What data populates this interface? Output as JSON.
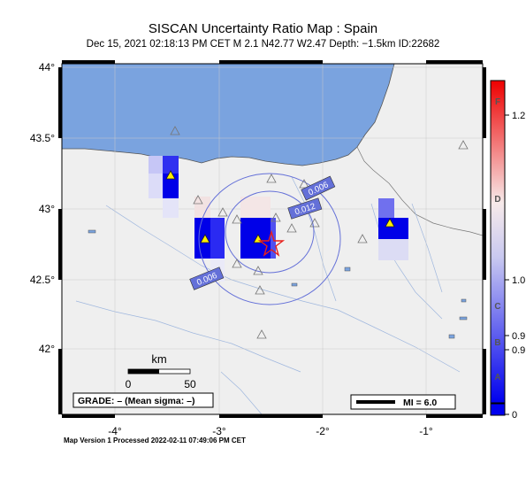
{
  "header": {
    "title": "SISCAN Uncertainty Ratio Map : Spain",
    "subtitle": "Dec 15, 2021 02:18:13 PM CET   M 2.1   N42.77 W2.47   Depth: −1.5km   ID:22682"
  },
  "map": {
    "lon_ticks": [
      "-4°",
      "-3°",
      "-2°",
      "-1°"
    ],
    "lat_ticks": [
      "44°",
      "43.5°",
      "43°",
      "42.5°",
      "42°"
    ],
    "contour_labels": [
      "0.006",
      "0.012",
      "0.006"
    ],
    "scale_title": "km",
    "scale_ticks": [
      "0",
      "50"
    ],
    "grade_text": "GRADE: – (Mean sigma: –)",
    "mi_text": "MI = 6.0",
    "epicenter": {
      "lat": 42.77,
      "lon": -2.47
    }
  },
  "colorbar": {
    "letters": [
      "F",
      "D",
      "C",
      "B",
      "A"
    ],
    "values": [
      "1.2",
      "1.0",
      "0.9",
      "0.9",
      "0"
    ]
  },
  "footer": {
    "text": "Map Version 1 Processed 2022-02-11 07:49:06 PM CET"
  },
  "colors": {
    "sea": "#7aa3df",
    "land": "#efefef",
    "contour": "#6470d8",
    "station_fill": "#ffee00",
    "epicenter": "#e8201c"
  }
}
